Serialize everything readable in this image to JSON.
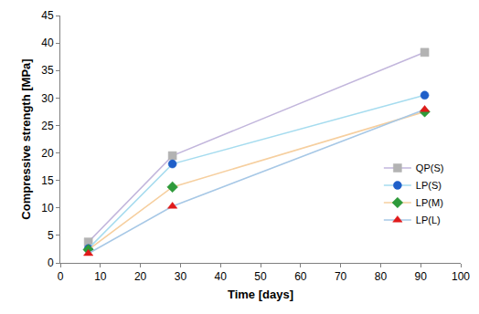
{
  "chart_data": {
    "type": "line",
    "x_label": "Time [days]",
    "y_label": "Compressive strength [MPa]",
    "x": [
      7,
      28,
      91
    ],
    "series": [
      {
        "name": "QP(S)",
        "color": "#b3b3b3",
        "marker": "square",
        "values": [
          3.8,
          19.5,
          38.3
        ]
      },
      {
        "name": "LP(S)",
        "color": "#1f5fc9",
        "marker": "circle",
        "values": [
          2.6,
          18.0,
          30.5
        ]
      },
      {
        "name": "LP(M)",
        "color": "#2e9a3a",
        "marker": "diamond",
        "values": [
          2.4,
          13.8,
          27.5
        ]
      },
      {
        "name": "LP(L)",
        "color": "#e01a1a",
        "marker": "triangle-up",
        "values": [
          1.7,
          10.3,
          27.9
        ]
      }
    ],
    "xlim": [
      0,
      100
    ],
    "xticks": [
      0,
      10,
      20,
      30,
      40,
      50,
      60,
      70,
      80,
      90,
      100
    ],
    "ylim": [
      0,
      45
    ],
    "yticks": [
      0,
      5,
      10,
      15,
      20,
      25,
      30,
      35,
      40,
      45
    ],
    "grid": false,
    "legend": "bottom right"
  }
}
